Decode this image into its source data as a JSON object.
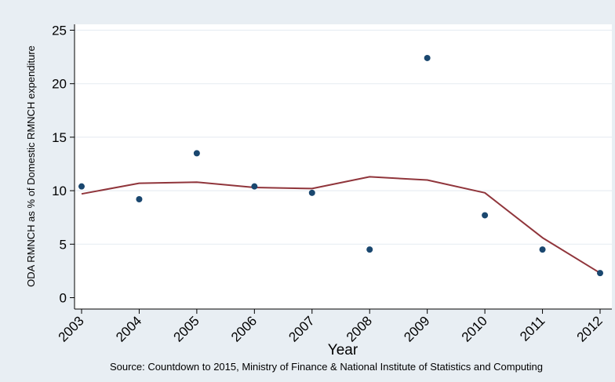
{
  "chart_data": {
    "type": "scatter",
    "title": "",
    "xlabel": "Year",
    "ylabel": "ODA RMNCH as % of Domestic RMNCH expenditure",
    "x_ticks": [
      "2003",
      "2004",
      "2005",
      "2006",
      "2007",
      "2008",
      "2009",
      "2010",
      "2011",
      "2012"
    ],
    "y_ticks": [
      "0",
      "5",
      "10",
      "15",
      "20",
      "25"
    ],
    "xlim": [
      2003,
      2012
    ],
    "ylim": [
      0,
      25
    ],
    "grid": "horizontal",
    "series": [
      {
        "type": "scatter",
        "x": [
          2003,
          2004,
          2005,
          2006,
          2007,
          2008,
          2009,
          2010,
          2011,
          2012
        ],
        "y": [
          10.4,
          9.2,
          13.5,
          10.4,
          9.8,
          4.5,
          22.4,
          7.7,
          4.5,
          2.3
        ]
      },
      {
        "type": "line",
        "x": [
          2003,
          2004,
          2005,
          2006,
          2007,
          2008,
          2009,
          2010,
          2011,
          2012
        ],
        "y": [
          9.7,
          10.7,
          10.8,
          10.3,
          10.2,
          11.3,
          11.0,
          9.8,
          5.6,
          2.3
        ]
      }
    ],
    "note": "Source: Countdown to 2015, Ministry of Finance & National Institute of Statistics and Computing",
    "colors": {
      "panel_background": "#e8eef3",
      "plot_background": "#ffffff",
      "grid": "#e8eef3",
      "marker": "#1a476f",
      "fit_line": "#90353b"
    }
  }
}
